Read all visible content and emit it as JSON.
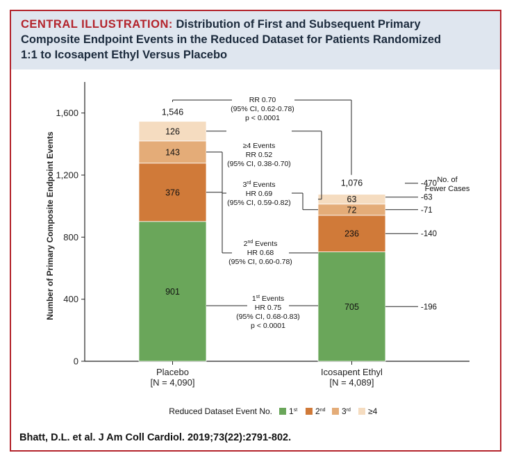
{
  "header": {
    "title_prefix": "CENTRAL ILLUSTRATION:",
    "title_line1": "Distribution of First and Subsequent Primary",
    "title_line2": "Composite Endpoint Events in the Reduced Dataset for Patients Randomized",
    "title_line3": "1:1 to Icosapent Ethyl Versus Placebo"
  },
  "citation": "Bhatt, D.L. et al. J Am Coll Cardiol. 2019;73(22):2791-802.",
  "chart_data": {
    "type": "bar",
    "stacked": true,
    "ylabel": "Number of Primary Composite Endpoint Events",
    "ylim": [
      0,
      1800
    ],
    "yticks": [
      0,
      400,
      800,
      1200,
      1600
    ],
    "yticklabels": [
      "0",
      "400",
      "800",
      "1,200",
      "1,600"
    ],
    "categories": [
      "Placebo",
      "Icosapent Ethyl"
    ],
    "category_sublabels": [
      "[N = 4,090]",
      "[N = 4,089]"
    ],
    "series": [
      {
        "name": "1st",
        "values": [
          901,
          705
        ],
        "color": "#6aa65a"
      },
      {
        "name": "2nd",
        "values": [
          376,
          236
        ],
        "color": "#d07a39"
      },
      {
        "name": "3rd",
        "values": [
          143,
          72
        ],
        "color": "#e4ac78"
      },
      {
        "name": "≥4",
        "values": [
          126,
          63
        ],
        "color": "#f5dcc0"
      }
    ],
    "totals": [
      1546,
      1076
    ],
    "total_labels": [
      "1,546",
      "1,076"
    ],
    "legend": {
      "title": "Reduced Dataset Event No.",
      "position": "bottom",
      "labels": [
        "1",
        "2",
        "3",
        "≥4"
      ],
      "sups": [
        "st",
        "nd",
        "rd",
        ""
      ]
    },
    "annotations": {
      "overall": [
        "RR 0.70",
        "(95% CI, 0.62-0.78)",
        "p < 0.0001"
      ],
      "ge4": [
        "≥4 Events",
        "RR 0.52",
        "(95% CI, 0.38-0.70)"
      ],
      "third": [
        "3rd Events",
        "HR 0.69",
        "(95% CI, 0.59-0.82)"
      ],
      "second": [
        "2nd Events",
        "HR 0.68",
        "(95% CI, 0.60-0.78)"
      ],
      "first": [
        "1st Events",
        "HR 0.75",
        "(95% CI, 0.68-0.83)",
        "p < 0.0001"
      ]
    },
    "fewer_cases": {
      "title": [
        "No. of",
        "Fewer Cases"
      ],
      "total": "-470",
      "by_series": [
        "-196",
        "-140",
        "-71",
        "-63"
      ]
    },
    "grid": false
  }
}
